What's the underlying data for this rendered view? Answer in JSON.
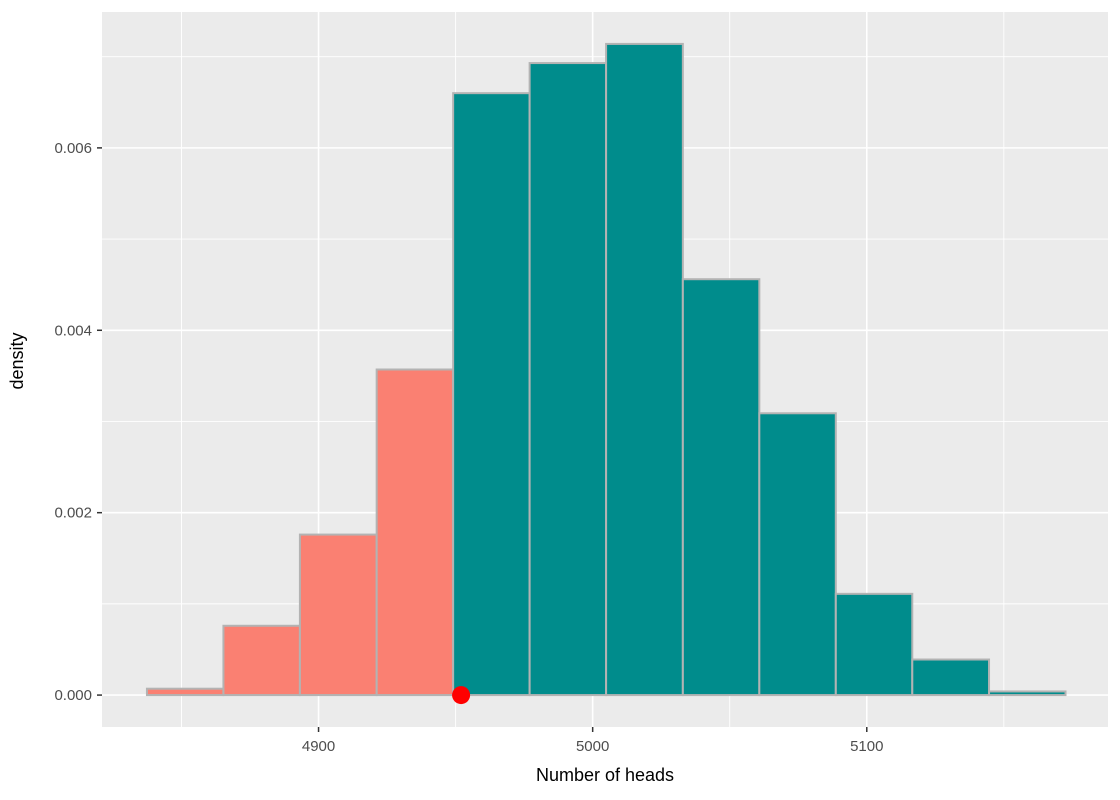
{
  "figure": {
    "kind": "ggplot-histogram",
    "panel_background": "#EBEBEB",
    "grid_color": "#FFFFFF",
    "tick_color": "#333333",
    "tick_label_color": "#4D4D4D",
    "axis_title_color": "#000000"
  },
  "chart_data": {
    "type": "bar",
    "subtype": "histogram",
    "title": "",
    "xlabel": "Number of heads",
    "ylabel": "density",
    "xlim": [
      4821,
      5188
    ],
    "ylim": [
      -0.00035,
      0.00749
    ],
    "grid": true,
    "legend": "none",
    "x_major_ticks": [
      4900,
      5000,
      5100
    ],
    "x_major_tick_labels": [
      "4900",
      "5000",
      "5100"
    ],
    "x_minor_gridlines": [
      4850,
      4950,
      5050,
      5150
    ],
    "y_major_ticks": [
      0,
      0.002,
      0.004,
      0.006
    ],
    "y_major_tick_labels": [
      "0.000",
      "0.002",
      "0.004",
      "0.006"
    ],
    "y_minor_gridlines": [
      0.001,
      0.003,
      0.005,
      0.007
    ],
    "bin_width": 27.9,
    "bins": [
      {
        "x_min": 4837.4,
        "x_max": 4865.3,
        "density": 7e-05,
        "group": "below"
      },
      {
        "x_min": 4865.3,
        "x_max": 4893.2,
        "density": 0.00076,
        "group": "below"
      },
      {
        "x_min": 4893.2,
        "x_max": 4921.2,
        "density": 0.00176,
        "group": "below"
      },
      {
        "x_min": 4921.2,
        "x_max": 4949.1,
        "density": 0.00357,
        "group": "below"
      },
      {
        "x_min": 4949.1,
        "x_max": 4977.0,
        "density": 0.0066,
        "group": "above"
      },
      {
        "x_min": 4977.0,
        "x_max": 5004.9,
        "density": 0.00693,
        "group": "above"
      },
      {
        "x_min": 5004.9,
        "x_max": 5032.9,
        "density": 0.00714,
        "group": "above"
      },
      {
        "x_min": 5032.9,
        "x_max": 5060.8,
        "density": 0.00456,
        "group": "above"
      },
      {
        "x_min": 5060.8,
        "x_max": 5088.7,
        "density": 0.00309,
        "group": "above"
      },
      {
        "x_min": 5088.7,
        "x_max": 5116.6,
        "density": 0.00111,
        "group": "above"
      },
      {
        "x_min": 5116.6,
        "x_max": 5144.6,
        "density": 0.00039,
        "group": "above"
      },
      {
        "x_min": 5144.6,
        "x_max": 5172.5,
        "density": 4e-05,
        "group": "above"
      }
    ],
    "group_fills": {
      "below": "#FA8072",
      "above": "#008C8C"
    },
    "bar_border_color": "#B3B3B3",
    "observed_point": {
      "x": 4952,
      "y": 0,
      "color": "#FF0000",
      "radius": 9
    }
  }
}
